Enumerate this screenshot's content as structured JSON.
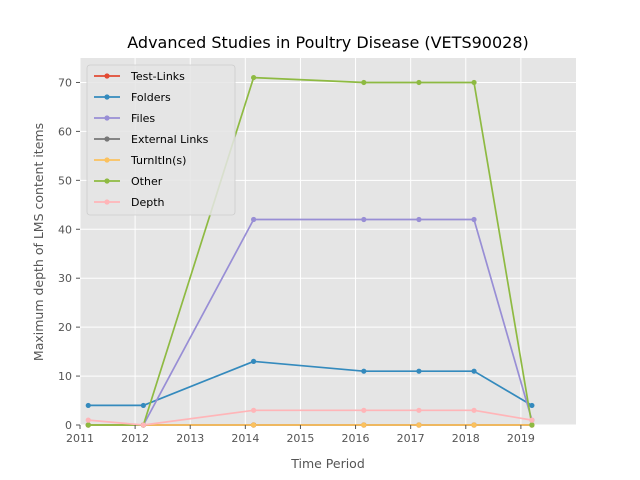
{
  "chart_data": {
    "type": "line",
    "title": "Advanced Studies in Poultry Disease (VETS90028)",
    "xlabel": "Time Period",
    "ylabel": "Maximum depth of LMS content items",
    "xlim": [
      2011,
      2020
    ],
    "ylim": [
      0,
      75
    ],
    "x_ticks": [
      "2011",
      "2012",
      "2013",
      "2014",
      "2015",
      "2016",
      "2017",
      "2018",
      "2019"
    ],
    "y_ticks": [
      "0",
      "10",
      "20",
      "30",
      "40",
      "50",
      "60",
      "70"
    ],
    "grid": true,
    "legend_position": "top-left",
    "x": [
      2011.15,
      2012.15,
      2014.15,
      2016.15,
      2017.15,
      2018.15,
      2019.2
    ],
    "series": [
      {
        "name": "Test-Links",
        "color": "#E24A33",
        "values": [
          0,
          0,
          0,
          0,
          0,
          0,
          0
        ]
      },
      {
        "name": "Folders",
        "color": "#348ABD",
        "values": [
          4,
          4,
          13,
          11,
          11,
          11,
          4
        ]
      },
      {
        "name": "Files",
        "color": "#988ED5",
        "values": [
          0,
          0,
          42,
          42,
          42,
          42,
          1
        ]
      },
      {
        "name": "External Links",
        "color": "#777777",
        "values": [
          0,
          0,
          0,
          0,
          0,
          0,
          0
        ]
      },
      {
        "name": "TurnItIn(s)",
        "color": "#FBC15E",
        "values": [
          0,
          0,
          0,
          0,
          0,
          0,
          0
        ]
      },
      {
        "name": "Other",
        "color": "#8EBA42",
        "values": [
          0,
          0,
          71,
          70,
          70,
          70,
          0
        ]
      },
      {
        "name": "Depth",
        "color": "#FFB5B8",
        "values": [
          1,
          0,
          3,
          3,
          3,
          3,
          1
        ]
      }
    ]
  }
}
